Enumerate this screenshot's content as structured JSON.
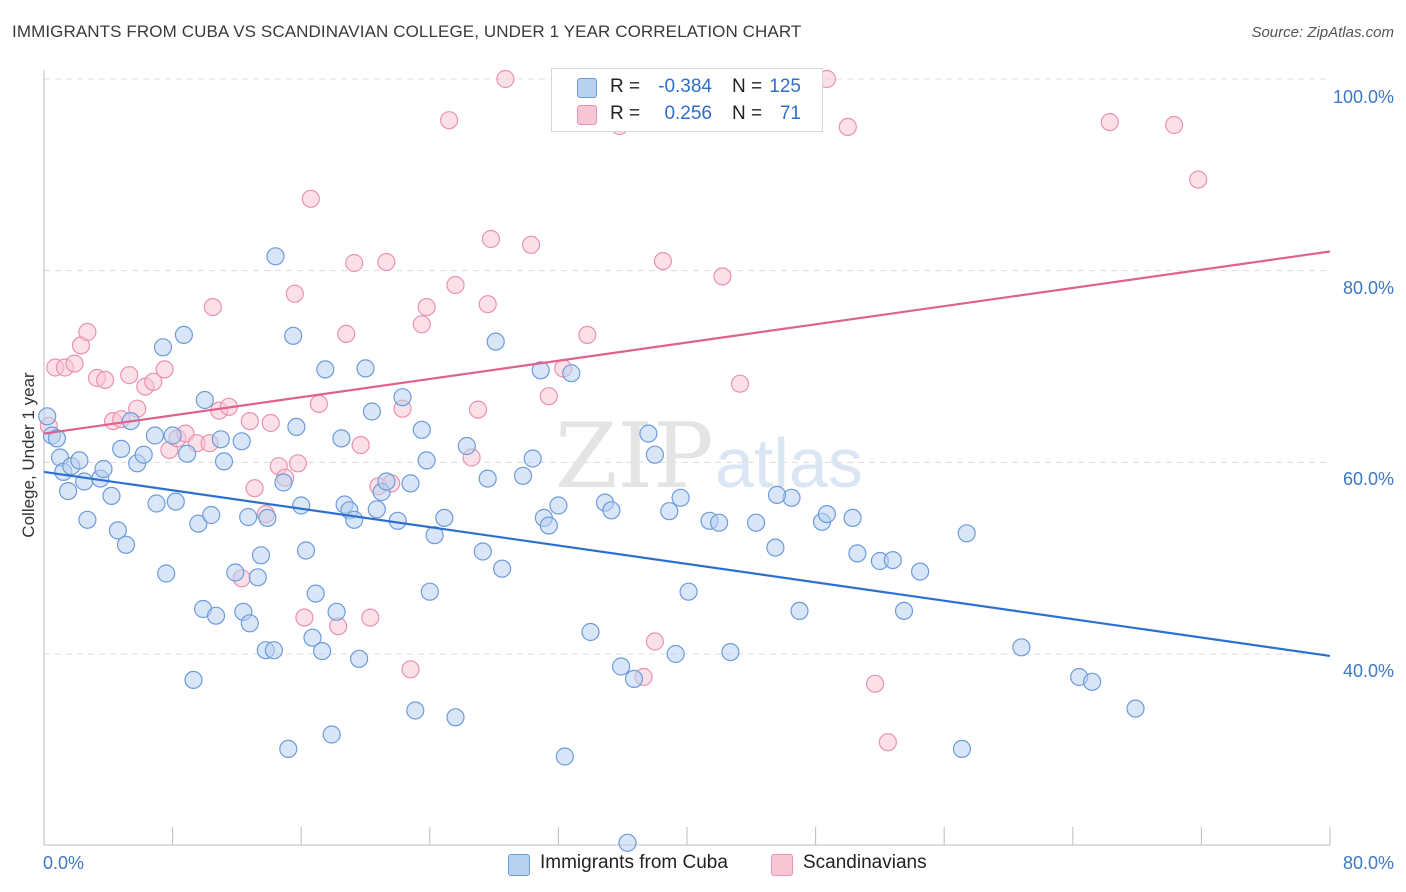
{
  "header": {
    "title": "IMMIGRANTS FROM CUBA VS SCANDINAVIAN COLLEGE, UNDER 1 YEAR CORRELATION CHART",
    "source": "Source: ZipAtlas.com"
  },
  "watermark": {
    "zip": "ZIP",
    "atlas": "atlas"
  },
  "legend_top": {
    "rows": [
      {
        "r_label": "R =",
        "r_value": "-0.384",
        "n_label": "N =",
        "n_value": "125"
      },
      {
        "r_label": "R =",
        "r_value": "0.256",
        "n_label": "N =",
        "n_value": "71"
      }
    ]
  },
  "legend_bottom": {
    "items": [
      {
        "label": "Immigrants from Cuba"
      },
      {
        "label": "Scandinavians"
      }
    ]
  },
  "colors": {
    "blue_fill": "#b8d1f1",
    "blue_stroke": "#6d9bdb",
    "blue_line": "#2c6fd1",
    "pink_fill": "#f7c6d5",
    "pink_stroke": "#eb92ae",
    "pink_line": "#e0628c",
    "tick_text": "#3d78c6",
    "grid": "#dcdcdc"
  },
  "chart_data": {
    "type": "scatter",
    "title": "IMMIGRANTS FROM CUBA VS SCANDINAVIAN COLLEGE, UNDER 1 YEAR CORRELATION CHART",
    "xlabel": "",
    "ylabel": "College, Under 1 year",
    "xlim": [
      0,
      80
    ],
    "ylim": [
      20,
      102
    ],
    "x_tick_labels": [
      "0.0%",
      "80.0%"
    ],
    "y_ticks": [
      40,
      60,
      80,
      100
    ],
    "y_tick_labels": [
      "40.0%",
      "60.0%",
      "80.0%",
      "100.0%"
    ],
    "grid": true,
    "legend_position": "top-center",
    "series": [
      {
        "name": "Immigrants from Cuba",
        "color": "#6d9bdb",
        "trend": {
          "x": [
            0,
            80
          ],
          "y": [
            59.0,
            39.8
          ]
        },
        "points": [
          [
            0.2,
            64.8
          ],
          [
            0.5,
            62.8
          ],
          [
            0.8,
            62.5
          ],
          [
            1.0,
            60.5
          ],
          [
            1.2,
            59.0
          ],
          [
            1.5,
            57.0
          ],
          [
            1.7,
            59.6
          ],
          [
            2.2,
            60.2
          ],
          [
            2.5,
            58.0
          ],
          [
            2.7,
            54.0
          ],
          [
            3.5,
            58.3
          ],
          [
            3.7,
            59.3
          ],
          [
            4.2,
            56.5
          ],
          [
            4.6,
            52.9
          ],
          [
            4.8,
            61.4
          ],
          [
            5.1,
            51.4
          ],
          [
            5.4,
            64.3
          ],
          [
            5.8,
            59.9
          ],
          [
            6.2,
            60.8
          ],
          [
            6.9,
            62.8
          ],
          [
            7.0,
            55.7
          ],
          [
            7.4,
            72.0
          ],
          [
            7.6,
            48.4
          ],
          [
            8.0,
            62.8
          ],
          [
            8.2,
            55.9
          ],
          [
            8.7,
            73.3
          ],
          [
            8.9,
            60.9
          ],
          [
            9.3,
            37.3
          ],
          [
            9.6,
            53.6
          ],
          [
            9.9,
            44.7
          ],
          [
            10.0,
            66.5
          ],
          [
            10.4,
            54.5
          ],
          [
            10.7,
            44.0
          ],
          [
            11.0,
            62.4
          ],
          [
            11.2,
            60.1
          ],
          [
            11.9,
            48.5
          ],
          [
            12.3,
            62.2
          ],
          [
            12.4,
            44.4
          ],
          [
            12.7,
            54.3
          ],
          [
            12.8,
            43.2
          ],
          [
            13.3,
            48.0
          ],
          [
            13.5,
            50.3
          ],
          [
            13.8,
            40.4
          ],
          [
            13.9,
            54.2
          ],
          [
            14.4,
            81.5
          ],
          [
            14.9,
            57.9
          ],
          [
            15.2,
            30.1
          ],
          [
            15.5,
            73.2
          ],
          [
            15.7,
            63.7
          ],
          [
            16.0,
            55.5
          ],
          [
            16.3,
            50.8
          ],
          [
            16.7,
            41.7
          ],
          [
            16.9,
            46.3
          ],
          [
            17.3,
            40.3
          ],
          [
            17.5,
            69.7
          ],
          [
            17.9,
            31.6
          ],
          [
            18.2,
            44.4
          ],
          [
            18.5,
            62.5
          ],
          [
            18.7,
            55.6
          ],
          [
            19.0,
            55.0
          ],
          [
            19.3,
            54.0
          ],
          [
            19.6,
            39.5
          ],
          [
            20.0,
            69.8
          ],
          [
            20.4,
            65.3
          ],
          [
            20.7,
            55.1
          ],
          [
            21.0,
            56.9
          ],
          [
            21.3,
            58.0
          ],
          [
            22.0,
            53.9
          ],
          [
            22.3,
            66.8
          ],
          [
            22.8,
            57.8
          ],
          [
            23.1,
            34.1
          ],
          [
            23.5,
            63.4
          ],
          [
            23.8,
            60.2
          ],
          [
            24.0,
            46.5
          ],
          [
            24.3,
            52.4
          ],
          [
            24.9,
            54.2
          ],
          [
            25.6,
            33.4
          ],
          [
            26.3,
            61.7
          ],
          [
            27.3,
            50.7
          ],
          [
            27.6,
            58.3
          ],
          [
            28.1,
            72.6
          ],
          [
            28.5,
            48.9
          ],
          [
            29.8,
            58.6
          ],
          [
            30.4,
            60.4
          ],
          [
            30.9,
            69.6
          ],
          [
            31.1,
            54.2
          ],
          [
            31.4,
            53.4
          ],
          [
            32.0,
            55.5
          ],
          [
            32.4,
            29.3
          ],
          [
            32.8,
            69.3
          ],
          [
            34.0,
            42.3
          ],
          [
            34.9,
            55.8
          ],
          [
            35.3,
            55.0
          ],
          [
            35.9,
            38.7
          ],
          [
            36.7,
            37.4
          ],
          [
            37.6,
            63.0
          ],
          [
            38.0,
            60.8
          ],
          [
            38.9,
            54.9
          ],
          [
            39.3,
            40.0
          ],
          [
            39.6,
            56.3
          ],
          [
            40.1,
            46.5
          ],
          [
            41.4,
            53.9
          ],
          [
            42.0,
            53.7
          ],
          [
            42.7,
            40.2
          ],
          [
            44.3,
            53.7
          ],
          [
            45.5,
            51.1
          ],
          [
            46.5,
            56.3
          ],
          [
            47.0,
            44.5
          ],
          [
            48.4,
            53.8
          ],
          [
            48.7,
            54.6
          ],
          [
            50.3,
            54.2
          ],
          [
            50.6,
            50.5
          ],
          [
            52.0,
            49.7
          ],
          [
            52.8,
            49.8
          ],
          [
            53.5,
            44.5
          ],
          [
            54.5,
            48.6
          ],
          [
            57.1,
            30.1
          ],
          [
            57.4,
            52.6
          ],
          [
            60.8,
            40.7
          ],
          [
            64.4,
            37.6
          ],
          [
            65.2,
            37.1
          ],
          [
            67.9,
            34.3
          ],
          [
            36.3,
            20.3
          ],
          [
            14.3,
            40.4
          ],
          [
            45.6,
            56.6
          ]
        ]
      },
      {
        "name": "Scandinavians",
        "color": "#eb92ae",
        "trend": {
          "x": [
            0,
            80
          ],
          "y": [
            63.0,
            82.0
          ]
        },
        "points": [
          [
            0.3,
            63.8
          ],
          [
            0.7,
            69.9
          ],
          [
            1.3,
            69.9
          ],
          [
            1.9,
            70.3
          ],
          [
            2.3,
            72.2
          ],
          [
            2.7,
            73.6
          ],
          [
            3.3,
            68.8
          ],
          [
            3.8,
            68.6
          ],
          [
            4.3,
            64.3
          ],
          [
            4.8,
            64.5
          ],
          [
            5.3,
            69.1
          ],
          [
            5.8,
            65.6
          ],
          [
            6.3,
            67.9
          ],
          [
            6.8,
            68.4
          ],
          [
            7.5,
            69.7
          ],
          [
            7.8,
            61.3
          ],
          [
            8.3,
            62.5
          ],
          [
            8.8,
            63.0
          ],
          [
            9.5,
            62.0
          ],
          [
            10.3,
            62.0
          ],
          [
            10.5,
            76.2
          ],
          [
            10.9,
            65.4
          ],
          [
            11.5,
            65.8
          ],
          [
            12.3,
            47.9
          ],
          [
            12.8,
            64.3
          ],
          [
            13.1,
            57.3
          ],
          [
            13.8,
            54.6
          ],
          [
            14.1,
            64.1
          ],
          [
            14.6,
            59.6
          ],
          [
            15.0,
            58.4
          ],
          [
            15.6,
            77.6
          ],
          [
            15.8,
            59.9
          ],
          [
            16.2,
            43.8
          ],
          [
            16.6,
            87.5
          ],
          [
            17.1,
            66.1
          ],
          [
            18.3,
            42.9
          ],
          [
            18.8,
            73.4
          ],
          [
            19.3,
            80.8
          ],
          [
            19.7,
            61.8
          ],
          [
            20.3,
            43.8
          ],
          [
            20.8,
            57.5
          ],
          [
            21.3,
            80.9
          ],
          [
            21.6,
            57.8
          ],
          [
            22.3,
            65.6
          ],
          [
            22.8,
            38.4
          ],
          [
            23.5,
            74.4
          ],
          [
            23.8,
            76.2
          ],
          [
            25.2,
            95.7
          ],
          [
            25.6,
            78.5
          ],
          [
            26.6,
            60.5
          ],
          [
            27.0,
            65.5
          ],
          [
            27.6,
            76.5
          ],
          [
            27.8,
            83.3
          ],
          [
            28.7,
            100.0
          ],
          [
            30.3,
            82.7
          ],
          [
            31.4,
            66.9
          ],
          [
            32.3,
            69.8
          ],
          [
            33.8,
            73.3
          ],
          [
            35.8,
            95.1
          ],
          [
            37.3,
            37.6
          ],
          [
            38.0,
            41.3
          ],
          [
            38.5,
            81.0
          ],
          [
            42.2,
            79.4
          ],
          [
            43.3,
            68.2
          ],
          [
            48.7,
            100.0
          ],
          [
            50.0,
            95.0
          ],
          [
            51.7,
            36.9
          ],
          [
            52.5,
            30.8
          ],
          [
            66.3,
            95.5
          ],
          [
            70.3,
            95.2
          ],
          [
            71.8,
            89.5
          ]
        ]
      }
    ]
  }
}
